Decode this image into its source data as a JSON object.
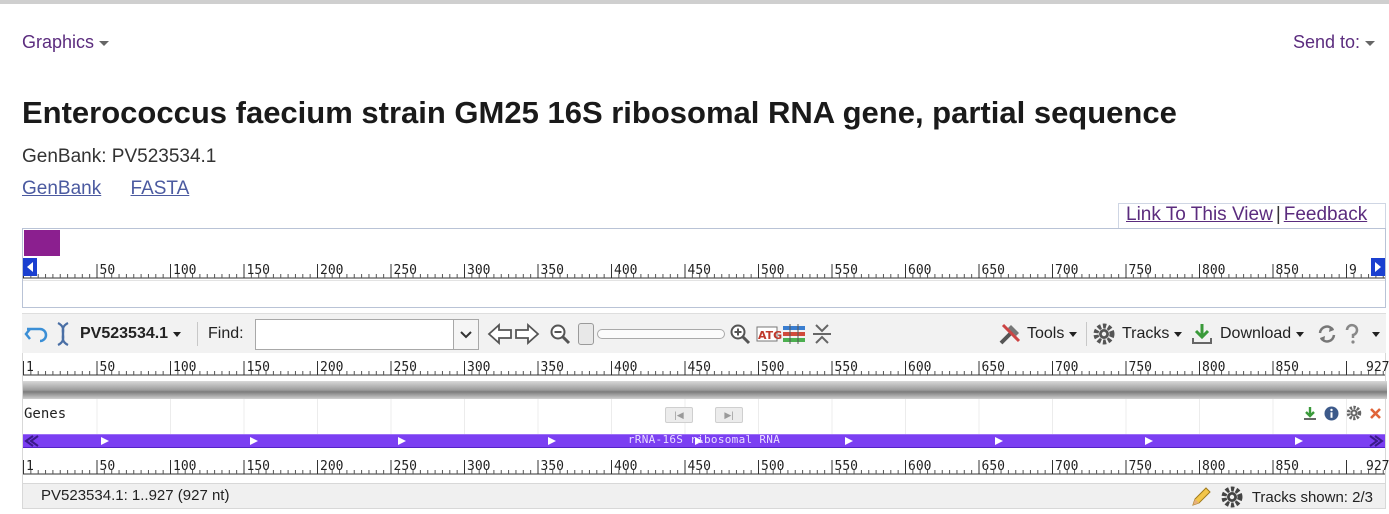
{
  "header": {
    "graphics_label": "Graphics",
    "sendto_label": "Send to:",
    "title": "Enterococcus faecium strain GM25 16S ribosomal RNA gene, partial sequence",
    "accession_label": "GenBank: PV523534.1",
    "links": [
      "GenBank",
      "FASTA"
    ]
  },
  "view_links": {
    "link_label": "Link To This View",
    "separator": "|",
    "feedback_label": "Feedback"
  },
  "panorama": {
    "ticks": [
      "50",
      "100",
      "150",
      "200",
      "250",
      "300",
      "350",
      "400",
      "450",
      "500",
      "550",
      "600",
      "650",
      "700",
      "750",
      "800",
      "850",
      "9"
    ],
    "marker_color": "#8b1f8f"
  },
  "toolbar": {
    "sequence_name": "PV523534.1",
    "find_label": "Find:",
    "find_value": "",
    "tools_label": "Tools",
    "tracks_label": "Tracks",
    "download_label": "Download"
  },
  "ruler": {
    "ticks": [
      "1",
      "50",
      "100",
      "150",
      "200",
      "250",
      "300",
      "350",
      "400",
      "450",
      "500",
      "550",
      "600",
      "650",
      "700",
      "750",
      "800",
      "850",
      "927"
    ]
  },
  "tracks": {
    "genes_label": "Genes",
    "feature_label": "rRNA-16S ribosomal RNA",
    "feature_color": "#7b3ff2"
  },
  "status": {
    "range_label": "PV523534.1: 1..927 (927 nt)",
    "tracks_shown": "Tracks shown: 2/3"
  }
}
